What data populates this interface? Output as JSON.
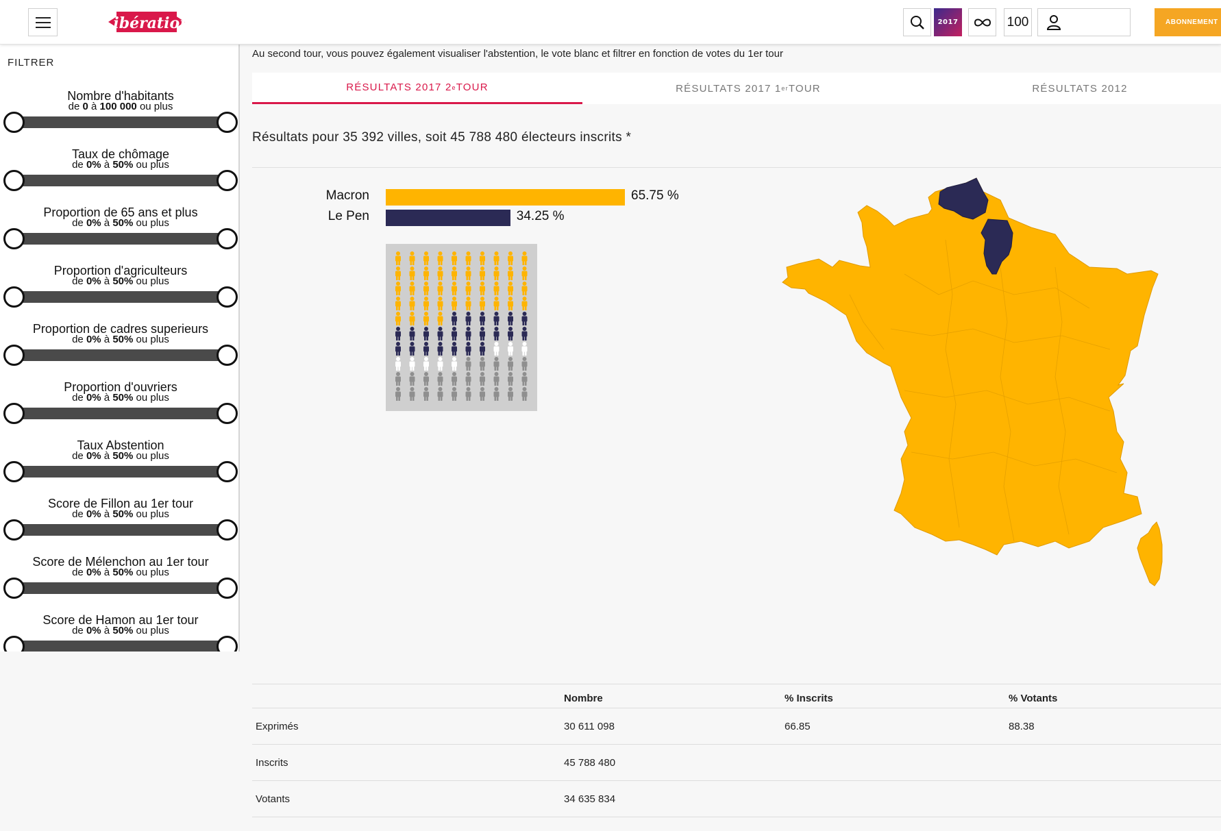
{
  "header": {
    "menu_icon": "hamburger-menu-icon",
    "logo_text": "Libération",
    "search_icon": "search-icon",
    "badge_2017": "2017",
    "infinity_icon": "infinity-icon",
    "badge_100": "100",
    "user_icon": "user-icon",
    "subscribe_label": "ABONNEMENT"
  },
  "sidebar": {
    "title": "FILTRER",
    "filters": [
      {
        "title": "Nombre d'habitants",
        "pre": "de ",
        "min": "0",
        "mid": " à ",
        "max": "100 000",
        "post": " ou plus"
      },
      {
        "title": "Taux de chômage",
        "pre": "de ",
        "min": "0%",
        "mid": " à ",
        "max": "50%",
        "post": " ou plus"
      },
      {
        "title": "Proportion de 65 ans et plus",
        "pre": "de ",
        "min": "0%",
        "mid": " à ",
        "max": "50%",
        "post": " ou plus"
      },
      {
        "title": "Proportion d'agriculteurs",
        "pre": "de ",
        "min": "0%",
        "mid": " à ",
        "max": "50%",
        "post": " ou plus"
      },
      {
        "title": "Proportion de cadres superieurs",
        "pre": "de ",
        "min": "0%",
        "mid": " à ",
        "max": "50%",
        "post": " ou plus"
      },
      {
        "title": "Proportion d'ouvriers",
        "pre": "de ",
        "min": "0%",
        "mid": " à ",
        "max": "50%",
        "post": " ou plus"
      },
      {
        "title": "Taux Abstention",
        "pre": "de ",
        "min": "0%",
        "mid": " à ",
        "max": "50%",
        "post": " ou plus"
      },
      {
        "title": "Score de Fillon au 1er tour",
        "pre": "de ",
        "min": "0%",
        "mid": " à ",
        "max": "50%",
        "post": " ou plus"
      },
      {
        "title": "Score de Mélenchon au 1er tour",
        "pre": "de ",
        "min": "0%",
        "mid": " à ",
        "max": "50%",
        "post": " ou plus"
      },
      {
        "title": "Score de Hamon au 1er tour",
        "pre": "de ",
        "min": "0%",
        "mid": " à ",
        "max": "50%",
        "post": " ou plus"
      }
    ]
  },
  "main": {
    "intro": "Au second tour, vous pouvez également visualiser l'abstention, le vote blanc et filtrer en fonction de votes du 1er tour",
    "tabs": [
      {
        "label": "RÉSULTATS 2017 2",
        "sup": "e",
        "suffix": " TOUR",
        "active": true
      },
      {
        "label": "RÉSULTATS 2017 1",
        "sup": "er",
        "suffix": " TOUR",
        "active": false
      },
      {
        "label": "RÉSULTATS 2012",
        "sup": "",
        "suffix": "",
        "active": false
      }
    ],
    "summary": "Résultats pour 35 392 villes, soit 45 788 480 électeurs inscrits *"
  },
  "colors": {
    "macron": "#ffb400",
    "lepen": "#2b2a55",
    "blanc": "#ffffff",
    "abstention": "#8f8f8f",
    "accent": "#d9184a",
    "subscribe": "#f5a623"
  },
  "chart_data": {
    "type": "bar",
    "categories": [
      "Macron",
      "Le Pen"
    ],
    "values": [
      65.75,
      34.25
    ],
    "value_labels": [
      "65.75 %",
      "34.25 %"
    ],
    "colors": [
      "#ffb400",
      "#2b2a55"
    ],
    "pictogram": {
      "type": "waffle",
      "total": 100,
      "counts": [
        {
          "label": "Macron",
          "count": 44,
          "color": "#ffb400"
        },
        {
          "label": "Le Pen",
          "count": 23,
          "color": "#2b2a55"
        },
        {
          "label": "Blancs",
          "count": 8,
          "color": "#ffffff"
        },
        {
          "label": "Abstention",
          "count": 25,
          "color": "#8f8f8f"
        }
      ]
    },
    "map": {
      "type": "choropleth",
      "region": "France",
      "winner_lepen_departments": [
        "Pas-de-Calais",
        "Aisne"
      ],
      "winner_default": "Macron"
    }
  },
  "table": {
    "headers": [
      "",
      "Nombre",
      "% Inscrits",
      "% Votants"
    ],
    "rows": [
      {
        "label": "Exprimés",
        "nombre": "30 611 098",
        "inscrits": "66.85",
        "votants": "88.38"
      },
      {
        "label": "Inscrits",
        "nombre": "45 788 480",
        "inscrits": "",
        "votants": ""
      },
      {
        "label": "Votants",
        "nombre": "34 635 834",
        "inscrits": "",
        "votants": ""
      }
    ]
  }
}
